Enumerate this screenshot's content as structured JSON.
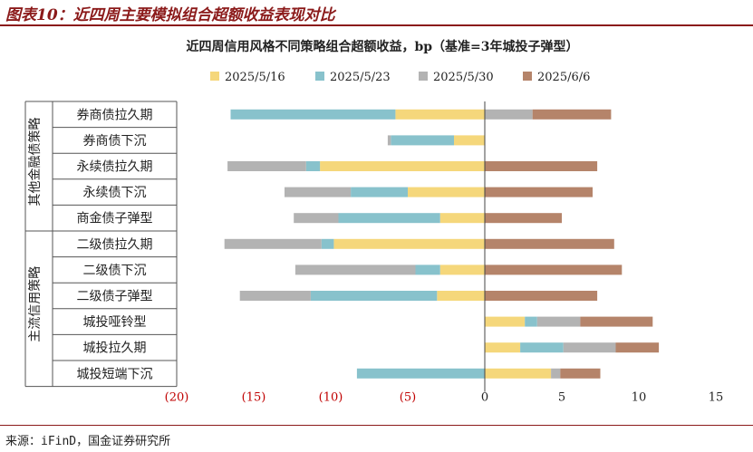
{
  "figure": {
    "title": "图表10：近四周主要模拟组合超额收益表现对比",
    "source": "来源：iFinD，国金证券研究所"
  },
  "chart_data": {
    "type": "bar",
    "orientation": "horizontal",
    "stacked": true,
    "title": "近四周信用风格不同策略组合超额收益，bp（基准=3年城投子弹型）",
    "xlabel": "",
    "ylabel": "",
    "xlim": [
      -20,
      15
    ],
    "xticks": [
      -20,
      -15,
      -10,
      -5,
      0,
      5,
      10,
      15
    ],
    "xtick_labels": [
      "(20)",
      "(15)",
      "(10)",
      "(5)",
      "0",
      "5",
      "10",
      "15"
    ],
    "negative_tick_color": "#c00000",
    "legend_position": "top",
    "groups": [
      {
        "label": "其他金融债策略",
        "categories": [
          "券商债拉久期",
          "券商债下沉",
          "永续债拉久期",
          "永续债下沉",
          "商金债子弹型"
        ]
      },
      {
        "label": "主流信用策略",
        "categories": [
          "二级债拉久期",
          "二级债下沉",
          "二级债子弹型",
          "城投哑铃型",
          "城投拉久期",
          "城投短端下沉"
        ]
      }
    ],
    "categories": [
      "券商债拉久期",
      "券商债下沉",
      "永续债拉久期",
      "永续债下沉",
      "商金债子弹型",
      "二级债拉久期",
      "二级债下沉",
      "二级债子弹型",
      "城投哑铃型",
      "城投拉久期",
      "城投短端下沉"
    ],
    "series": [
      {
        "name": "2025/5/16",
        "color": "#f5d77b",
        "values": [
          -5.8,
          -2.0,
          -10.7,
          -5.0,
          -2.9,
          -9.8,
          -2.9,
          -3.1,
          2.6,
          2.3,
          4.3
        ]
      },
      {
        "name": "2025/5/23",
        "color": "#88c2cc",
        "values": [
          -10.7,
          -4.1,
          -0.9,
          -3.7,
          -6.6,
          -0.8,
          -1.6,
          -8.2,
          0.8,
          2.8,
          -8.3
        ]
      },
      {
        "name": "2025/5/30",
        "color": "#b3b3b3",
        "values": [
          3.1,
          -0.2,
          -5.1,
          -4.3,
          -2.9,
          -6.3,
          -7.8,
          -4.6,
          2.8,
          3.4,
          0.6
        ]
      },
      {
        "name": "2025/6/6",
        "color": "#b5846a",
        "values": [
          5.1,
          0.0,
          7.3,
          7.0,
          5.0,
          8.4,
          8.9,
          7.3,
          4.7,
          2.8,
          2.6
        ]
      }
    ]
  }
}
